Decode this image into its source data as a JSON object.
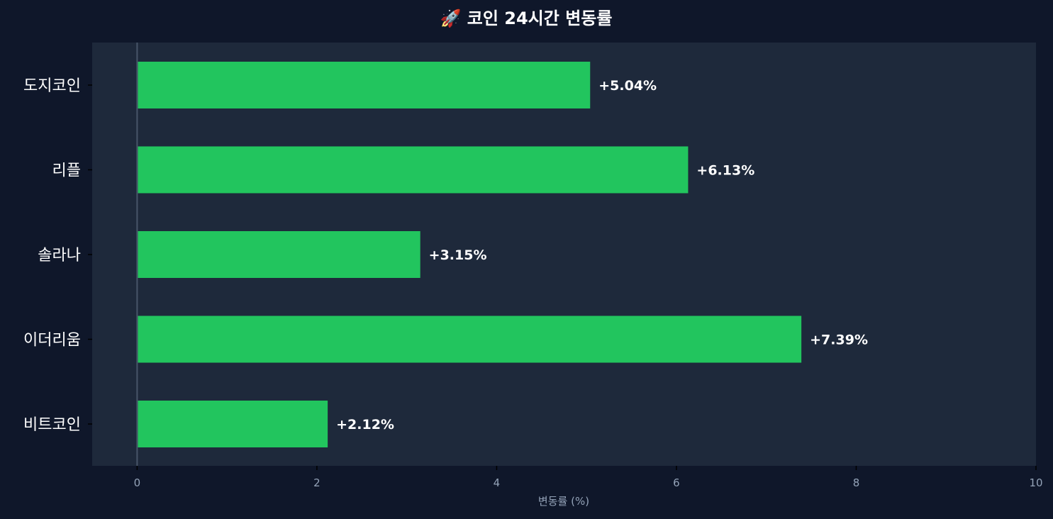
{
  "colors": {
    "figure_bg": "#0f172a",
    "plot_bg": "#1e293b",
    "bar": "#22c55e",
    "title": "#ffffff",
    "category_label": "#ffffff",
    "tick_label": "#94a3b8",
    "axis_label": "#94a3b8",
    "data_label": "#ffffff",
    "zero_line": "#475569",
    "tick_mark": "#000000"
  },
  "chart_data": {
    "type": "bar",
    "orientation": "horizontal",
    "title": "🚀 코인 24시간 변동률",
    "xlabel": "변동률 (%)",
    "ylabel": "",
    "categories": [
      "도지코인",
      "리플",
      "솔라나",
      "이더리움",
      "비트코인"
    ],
    "values": [
      5.04,
      6.13,
      3.15,
      7.39,
      2.12
    ],
    "value_labels": [
      "+5.04%",
      "+6.13%",
      "+3.15%",
      "+7.39%",
      "+2.12%"
    ],
    "xlim": [
      -0.5,
      10
    ],
    "xticks": [
      0,
      2,
      4,
      6,
      8,
      10
    ],
    "xtick_labels": [
      "0",
      "2",
      "4",
      "6",
      "8",
      "10"
    ],
    "zero_line": true,
    "grid": false,
    "legend": "none"
  }
}
